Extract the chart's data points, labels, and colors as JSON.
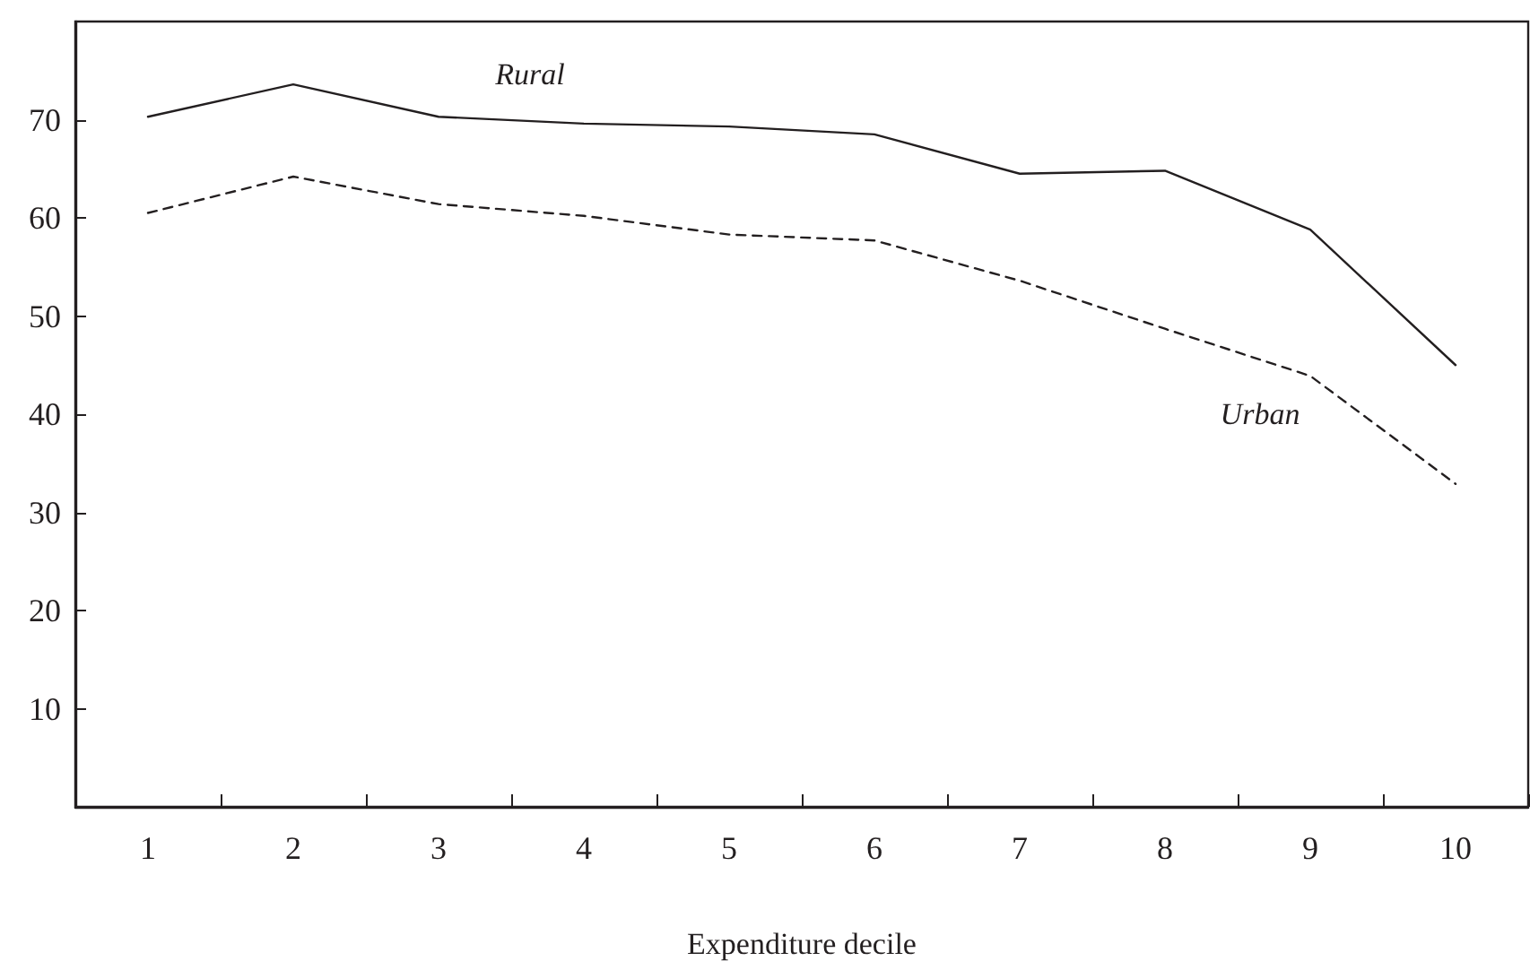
{
  "chart_data": {
    "type": "line",
    "xlabel": "Expenditure decile",
    "categories": [
      "1",
      "2",
      "3",
      "4",
      "5",
      "6",
      "7",
      "8",
      "9",
      "10"
    ],
    "ylim": [
      0,
      80
    ],
    "yticks": [
      10,
      20,
      30,
      40,
      50,
      60,
      70
    ],
    "marker": "none",
    "series": [
      {
        "name": "Rural",
        "color": "#231f20",
        "line_style": "solid",
        "values": [
          70.3,
          73.6,
          70.3,
          69.6,
          69.3,
          68.5,
          64.5,
          64.8,
          58.8,
          45.0
        ]
      },
      {
        "name": "Urban",
        "color": "#231f20",
        "line_style": "dashed",
        "values": [
          60.5,
          64.2,
          61.4,
          60.2,
          58.3,
          57.7,
          53.6,
          48.7,
          43.9,
          32.9
        ]
      }
    ]
  }
}
